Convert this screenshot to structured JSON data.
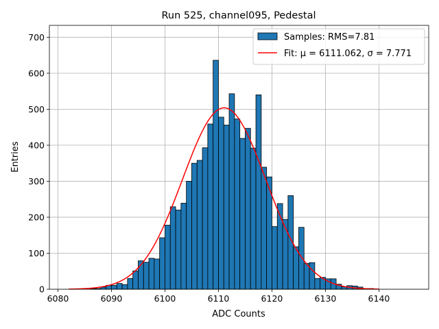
{
  "chart_data": {
    "type": "bar",
    "title": "Run 525, channel095, Pedestal",
    "xlabel": "ADC Counts",
    "ylabel": "Entries",
    "xlim": [
      6078.4,
      6149.3
    ],
    "ylim": [
      0,
      733
    ],
    "xticks": [
      6080,
      6090,
      6100,
      6110,
      6120,
      6130,
      6140
    ],
    "yticks": [
      0,
      100,
      200,
      300,
      400,
      500,
      600,
      700
    ],
    "grid": true,
    "legend_position": "top-right",
    "bin_width": 1,
    "series": [
      {
        "name": "Samples: RMS=7.81",
        "kind": "histogram",
        "color": "#1f77b4",
        "edgecolor": "#000000",
        "bins": [
          6081,
          6082,
          6083,
          6084,
          6085,
          6086,
          6087,
          6088,
          6089,
          6090,
          6091,
          6092,
          6093,
          6094,
          6095,
          6096,
          6097,
          6098,
          6099,
          6100,
          6101,
          6102,
          6103,
          6104,
          6105,
          6106,
          6107,
          6108,
          6109,
          6110,
          6111,
          6112,
          6113,
          6114,
          6115,
          6116,
          6117,
          6118,
          6119,
          6120,
          6121,
          6122,
          6123,
          6124,
          6125,
          6126,
          6127,
          6128,
          6129,
          6130,
          6131,
          6132,
          6133,
          6134,
          6135,
          6136,
          6137,
          6138,
          6139,
          6140,
          6141,
          6142,
          6143,
          6144,
          6145
        ],
        "counts": [
          0,
          0,
          0,
          0,
          0,
          2,
          2,
          6,
          11,
          11,
          16,
          13,
          30,
          51,
          79,
          75,
          86,
          84,
          143,
          178,
          229,
          220,
          239,
          300,
          350,
          358,
          393,
          459,
          636,
          478,
          456,
          543,
          473,
          419,
          447,
          392,
          540,
          339,
          312,
          174,
          238,
          194,
          260,
          118,
          172,
          72,
          74,
          30,
          33,
          29,
          29,
          14,
          7,
          10,
          9,
          6,
          2,
          2,
          1,
          0,
          0,
          0,
          0,
          0,
          0
        ]
      },
      {
        "name": "Fit: μ = 6111.062, σ = 7.771",
        "kind": "gaussian",
        "color": "#ff0000",
        "mu": 6111.062,
        "sigma": 7.771,
        "amplitude": 504,
        "x_range": [
          6082,
          6140
        ]
      }
    ]
  }
}
